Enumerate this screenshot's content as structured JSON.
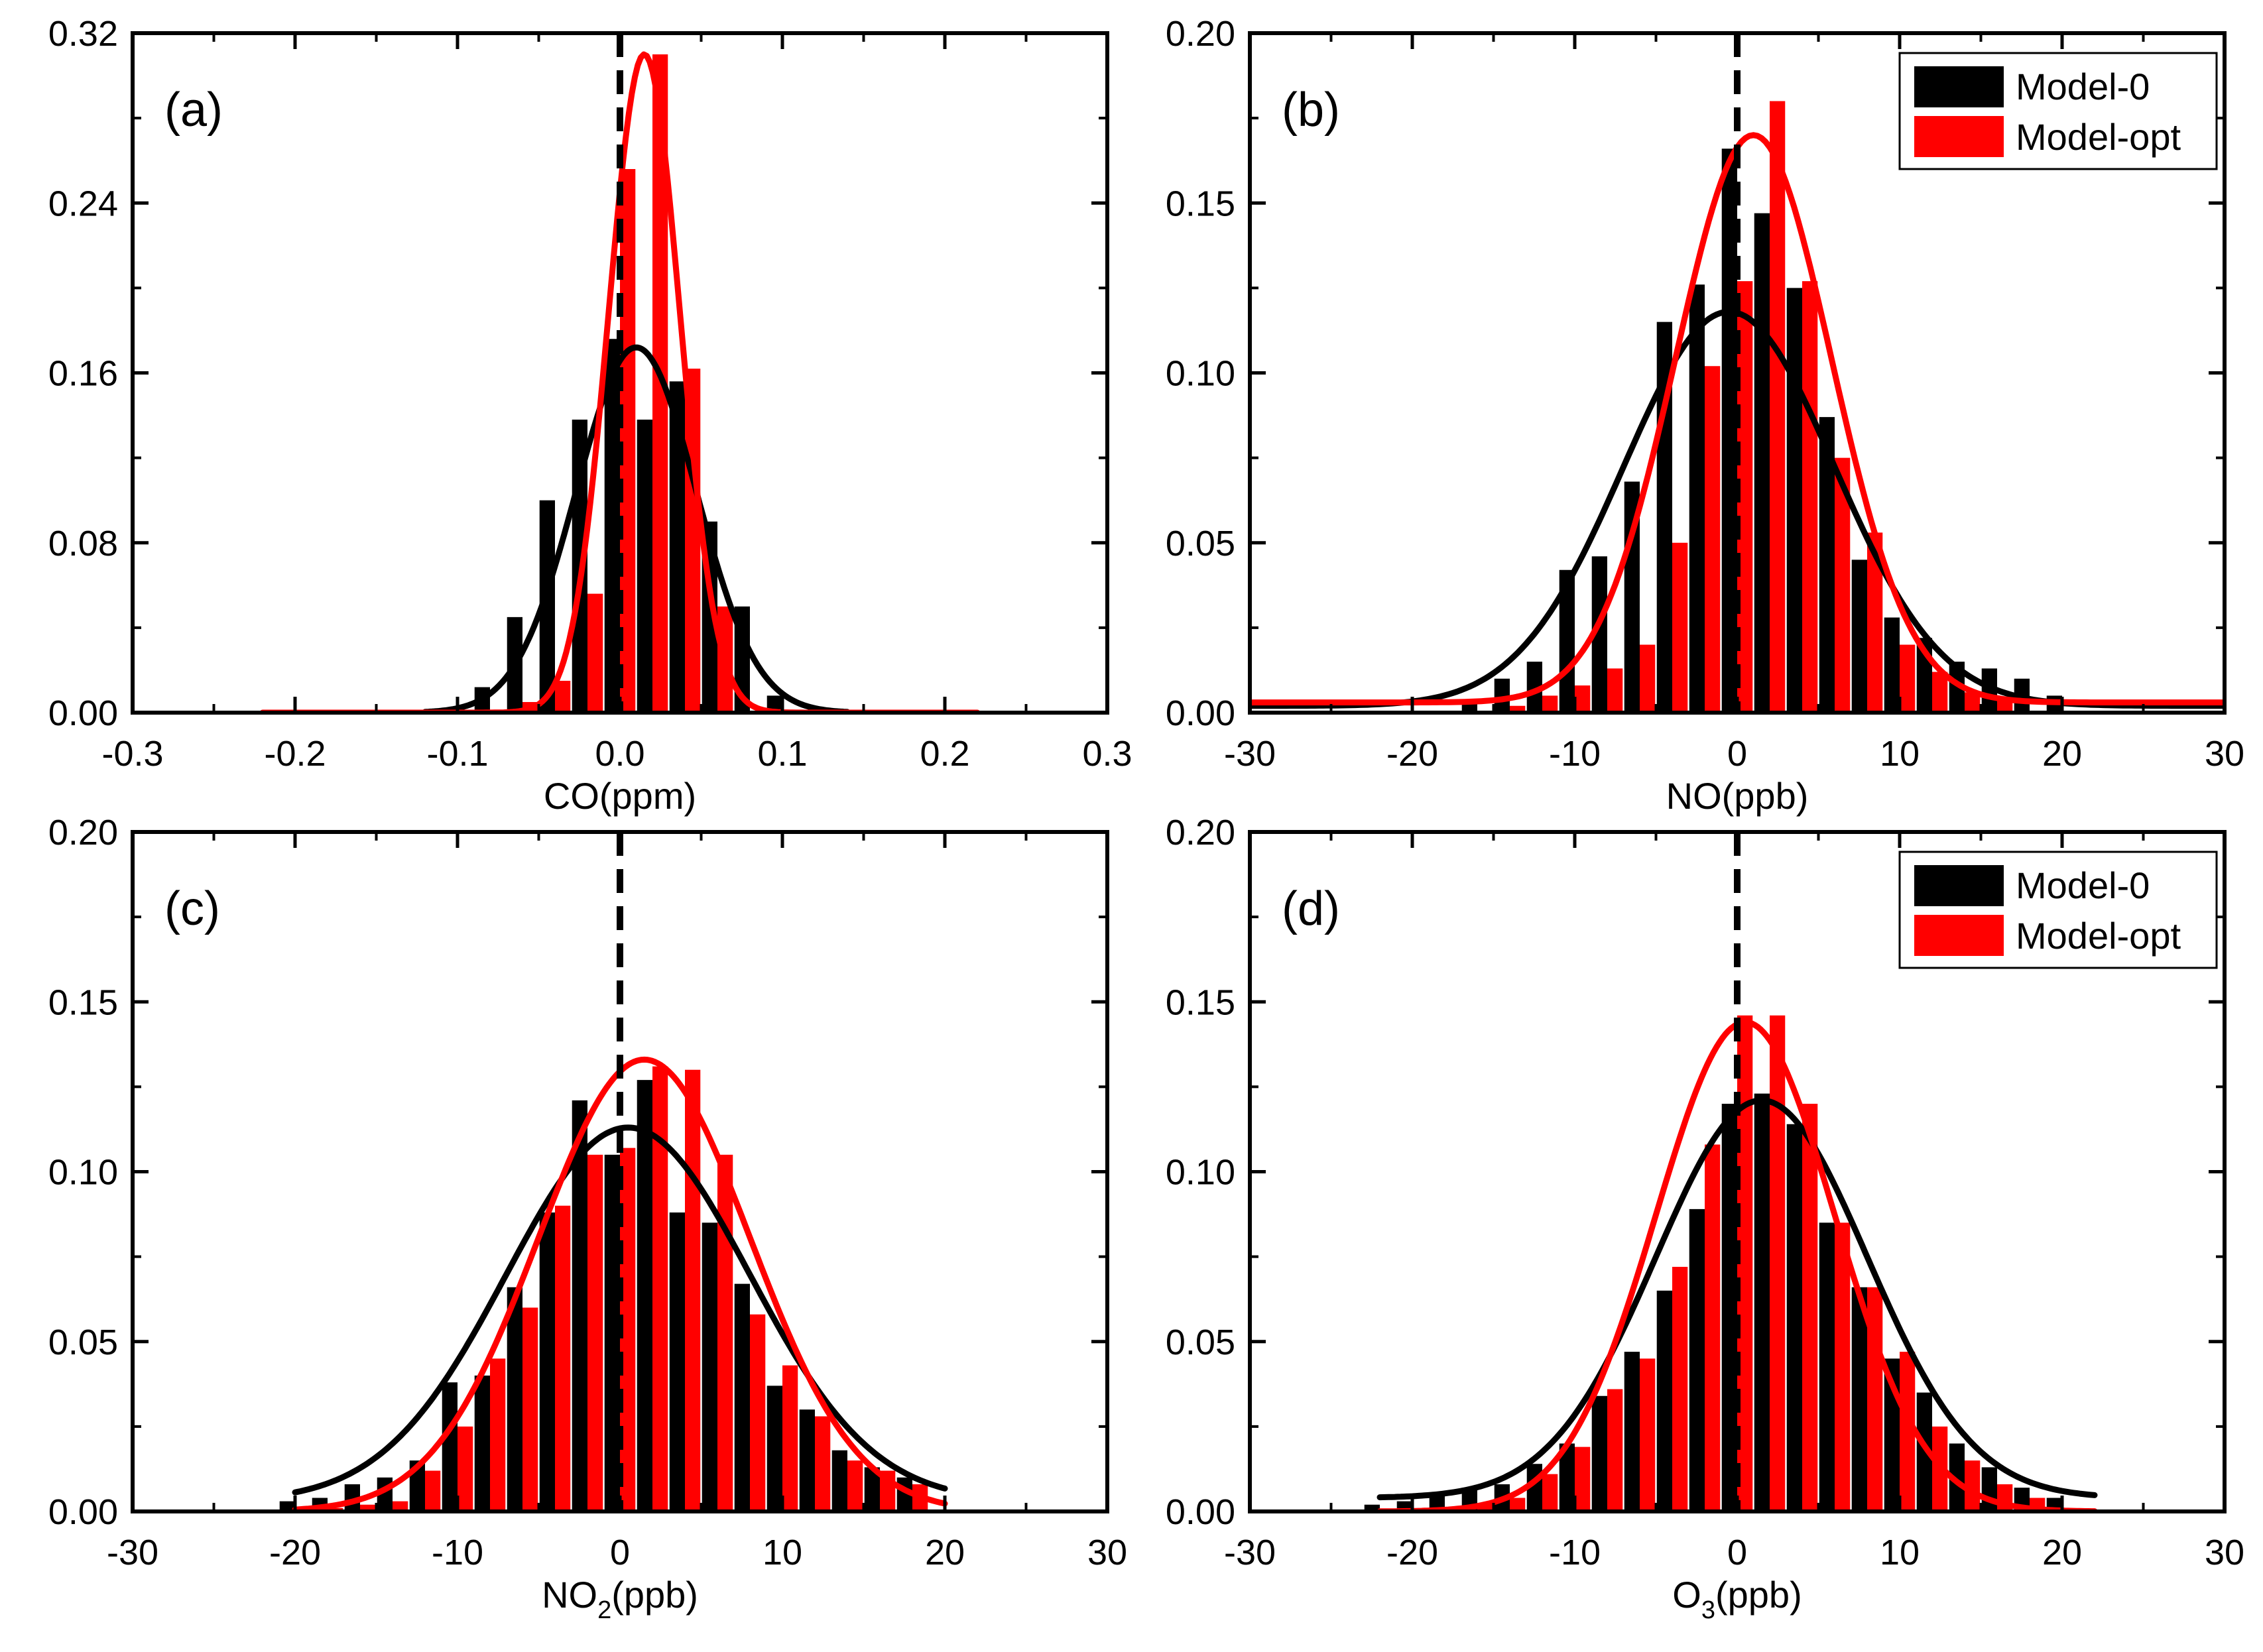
{
  "colors": {
    "model0": "#000000",
    "modelopt": "#ff0000",
    "axis": "#000000"
  },
  "legend": {
    "model0": "Model-0",
    "modelopt": "Model-opt"
  },
  "chart_data": [
    {
      "type": "bar",
      "panel_label": "(a)",
      "xlabel": "CO(ppm)",
      "xlim": [
        -0.3,
        0.3
      ],
      "ylim": [
        0,
        0.32
      ],
      "xticks": [
        "-0.3",
        "-0.2",
        "-0.1",
        "0.0",
        "0.1",
        "0.2",
        "0.3"
      ],
      "xtick_values": [
        -0.3,
        -0.2,
        -0.1,
        0,
        0.1,
        0.2,
        0.3
      ],
      "yticks": [
        "0.00",
        "0.08",
        "0.16",
        "0.24",
        "0.32"
      ],
      "ytick_values": [
        0,
        0.08,
        0.16,
        0.24,
        0.32
      ],
      "show_legend": false,
      "x": [
        -0.1,
        -0.08,
        -0.06,
        -0.04,
        -0.02,
        0.0,
        0.02,
        0.04,
        0.06,
        0.08,
        0.1
      ],
      "series": [
        {
          "name": "Model-0",
          "values": [
            0.0,
            0.012,
            0.045,
            0.1,
            0.138,
            0.176,
            0.138,
            0.156,
            0.09,
            0.05,
            0.008
          ]
        },
        {
          "name": "Model-opt",
          "values": [
            0.0,
            0.0,
            0.005,
            0.015,
            0.056,
            0.256,
            0.31,
            0.162,
            0.05,
            0.0,
            0.0
          ]
        }
      ],
      "fits": [
        {
          "name": "Model-0",
          "mean": 0.01,
          "sd": 0.037,
          "amp": 0.172,
          "x_range": [
            -0.12,
            0.14
          ]
        },
        {
          "name": "Model-opt",
          "mean": 0.015,
          "sd": 0.022,
          "amp": 0.31,
          "x_range": [
            -0.22,
            0.22
          ]
        }
      ],
      "zero_line": 0
    },
    {
      "type": "bar",
      "panel_label": "(b)",
      "xlabel": "NO(ppb)",
      "xlim": [
        -30,
        30
      ],
      "ylim": [
        0,
        0.2
      ],
      "xticks": [
        "-30",
        "-20",
        "-10",
        "0",
        "10",
        "20",
        "30"
      ],
      "xtick_values": [
        -30,
        -20,
        -10,
        0,
        10,
        20,
        30
      ],
      "yticks": [
        "0.00",
        "0.05",
        "0.10",
        "0.15",
        "0.20"
      ],
      "ytick_values": [
        0,
        0.05,
        0.1,
        0.15,
        0.2
      ],
      "show_legend": true,
      "x": [
        -16,
        -14,
        -12,
        -10,
        -8,
        -6,
        -4,
        -2,
        0,
        2,
        4,
        6,
        8,
        10,
        12,
        14,
        16,
        18,
        20
      ],
      "series": [
        {
          "name": "Model-0",
          "values": [
            0.004,
            0.01,
            0.015,
            0.042,
            0.046,
            0.068,
            0.115,
            0.126,
            0.166,
            0.147,
            0.125,
            0.087,
            0.045,
            0.028,
            0.022,
            0.015,
            0.013,
            0.01,
            0.005
          ]
        },
        {
          "name": "Model-opt",
          "values": [
            0.0,
            0.002,
            0.005,
            0.008,
            0.013,
            0.02,
            0.05,
            0.102,
            0.127,
            0.18,
            0.127,
            0.075,
            0.053,
            0.02,
            0.012,
            0.006,
            0.004,
            0.0,
            0.0
          ]
        }
      ],
      "fits": [
        {
          "name": "Model-0",
          "mean": -0.5,
          "sd": 6.5,
          "amp": 0.116,
          "offset": 0.002,
          "x_range": [
            -30,
            30
          ]
        },
        {
          "name": "Model-opt",
          "mean": 1.0,
          "sd": 4.8,
          "amp": 0.167,
          "offset": 0.003,
          "x_range": [
            -30,
            30
          ]
        }
      ],
      "zero_line": 0
    },
    {
      "type": "bar",
      "panel_label": "(c)",
      "xlabel": "NO",
      "xlabel_sub": "2",
      "xlabel_tail": "(ppb)",
      "xlim": [
        -30,
        30
      ],
      "ylim": [
        0,
        0.2
      ],
      "xticks": [
        "-30",
        "-20",
        "-10",
        "0",
        "10",
        "20",
        "30"
      ],
      "xtick_values": [
        -30,
        -20,
        -10,
        0,
        10,
        20,
        30
      ],
      "yticks": [
        "0.00",
        "0.05",
        "0.10",
        "0.15",
        "0.20"
      ],
      "ytick_values": [
        0,
        0.05,
        0.1,
        0.15,
        0.2
      ],
      "show_legend": false,
      "x": [
        -20,
        -18,
        -16,
        -14,
        -12,
        -10,
        -8,
        -6,
        -4,
        -2,
        0,
        2,
        4,
        6,
        8,
        10,
        12,
        14,
        16,
        18
      ],
      "series": [
        {
          "name": "Model-0",
          "values": [
            0.003,
            0.004,
            0.008,
            0.01,
            0.015,
            0.038,
            0.04,
            0.066,
            0.088,
            0.121,
            0.105,
            0.127,
            0.088,
            0.085,
            0.067,
            0.037,
            0.03,
            0.018,
            0.013,
            0.01
          ]
        },
        {
          "name": "Model-opt",
          "values": [
            0.0,
            0.001,
            0.002,
            0.003,
            0.012,
            0.025,
            0.045,
            0.06,
            0.09,
            0.105,
            0.107,
            0.131,
            0.13,
            0.105,
            0.058,
            0.043,
            0.028,
            0.015,
            0.012,
            0.008
          ]
        }
      ],
      "fits": [
        {
          "name": "Model-0",
          "mean": 0.5,
          "sd": 7.5,
          "amp": 0.11,
          "offset": 0.003,
          "x_range": [
            -20,
            20
          ]
        },
        {
          "name": "Model-opt",
          "mean": 1.5,
          "sd": 6.5,
          "amp": 0.133,
          "offset": 0.0,
          "x_range": [
            -20,
            20
          ]
        }
      ],
      "zero_line": 0
    },
    {
      "type": "bar",
      "panel_label": "(d)",
      "xlabel": "O",
      "xlabel_sub": "3",
      "xlabel_tail": "(ppb)",
      "xlim": [
        -30,
        30
      ],
      "ylim": [
        0,
        0.2
      ],
      "xticks": [
        "-30",
        "-20",
        "-10",
        "0",
        "10",
        "20",
        "30"
      ],
      "xtick_values": [
        -30,
        -20,
        -10,
        0,
        10,
        20,
        30
      ],
      "yticks": [
        "0.00",
        "0.05",
        "0.10",
        "0.15",
        "0.20"
      ],
      "ytick_values": [
        0,
        0.05,
        0.1,
        0.15,
        0.2
      ],
      "show_legend": true,
      "x": [
        -22,
        -20,
        -18,
        -16,
        -14,
        -12,
        -10,
        -8,
        -6,
        -4,
        -2,
        0,
        2,
        4,
        6,
        8,
        10,
        12,
        14,
        16,
        18,
        20
      ],
      "series": [
        {
          "name": "Model-0",
          "values": [
            0.002,
            0.003,
            0.005,
            0.007,
            0.008,
            0.014,
            0.02,
            0.034,
            0.047,
            0.065,
            0.089,
            0.12,
            0.123,
            0.114,
            0.085,
            0.066,
            0.045,
            0.035,
            0.02,
            0.013,
            0.007,
            0.004
          ]
        },
        {
          "name": "Model-opt",
          "values": [
            0.0,
            0.0,
            0.001,
            0.002,
            0.004,
            0.011,
            0.019,
            0.036,
            0.045,
            0.072,
            0.108,
            0.146,
            0.146,
            0.12,
            0.085,
            0.066,
            0.047,
            0.025,
            0.015,
            0.008,
            0.004,
            0.0
          ]
        }
      ],
      "fits": [
        {
          "name": "Model-0",
          "mean": 1.5,
          "sd": 6.5,
          "amp": 0.117,
          "offset": 0.004,
          "x_range": [
            -22,
            22
          ]
        },
        {
          "name": "Model-opt",
          "mean": 0.5,
          "sd": 5.5,
          "amp": 0.144,
          "offset": 0.0,
          "x_range": [
            -22,
            22
          ]
        }
      ],
      "zero_line": 0
    }
  ]
}
